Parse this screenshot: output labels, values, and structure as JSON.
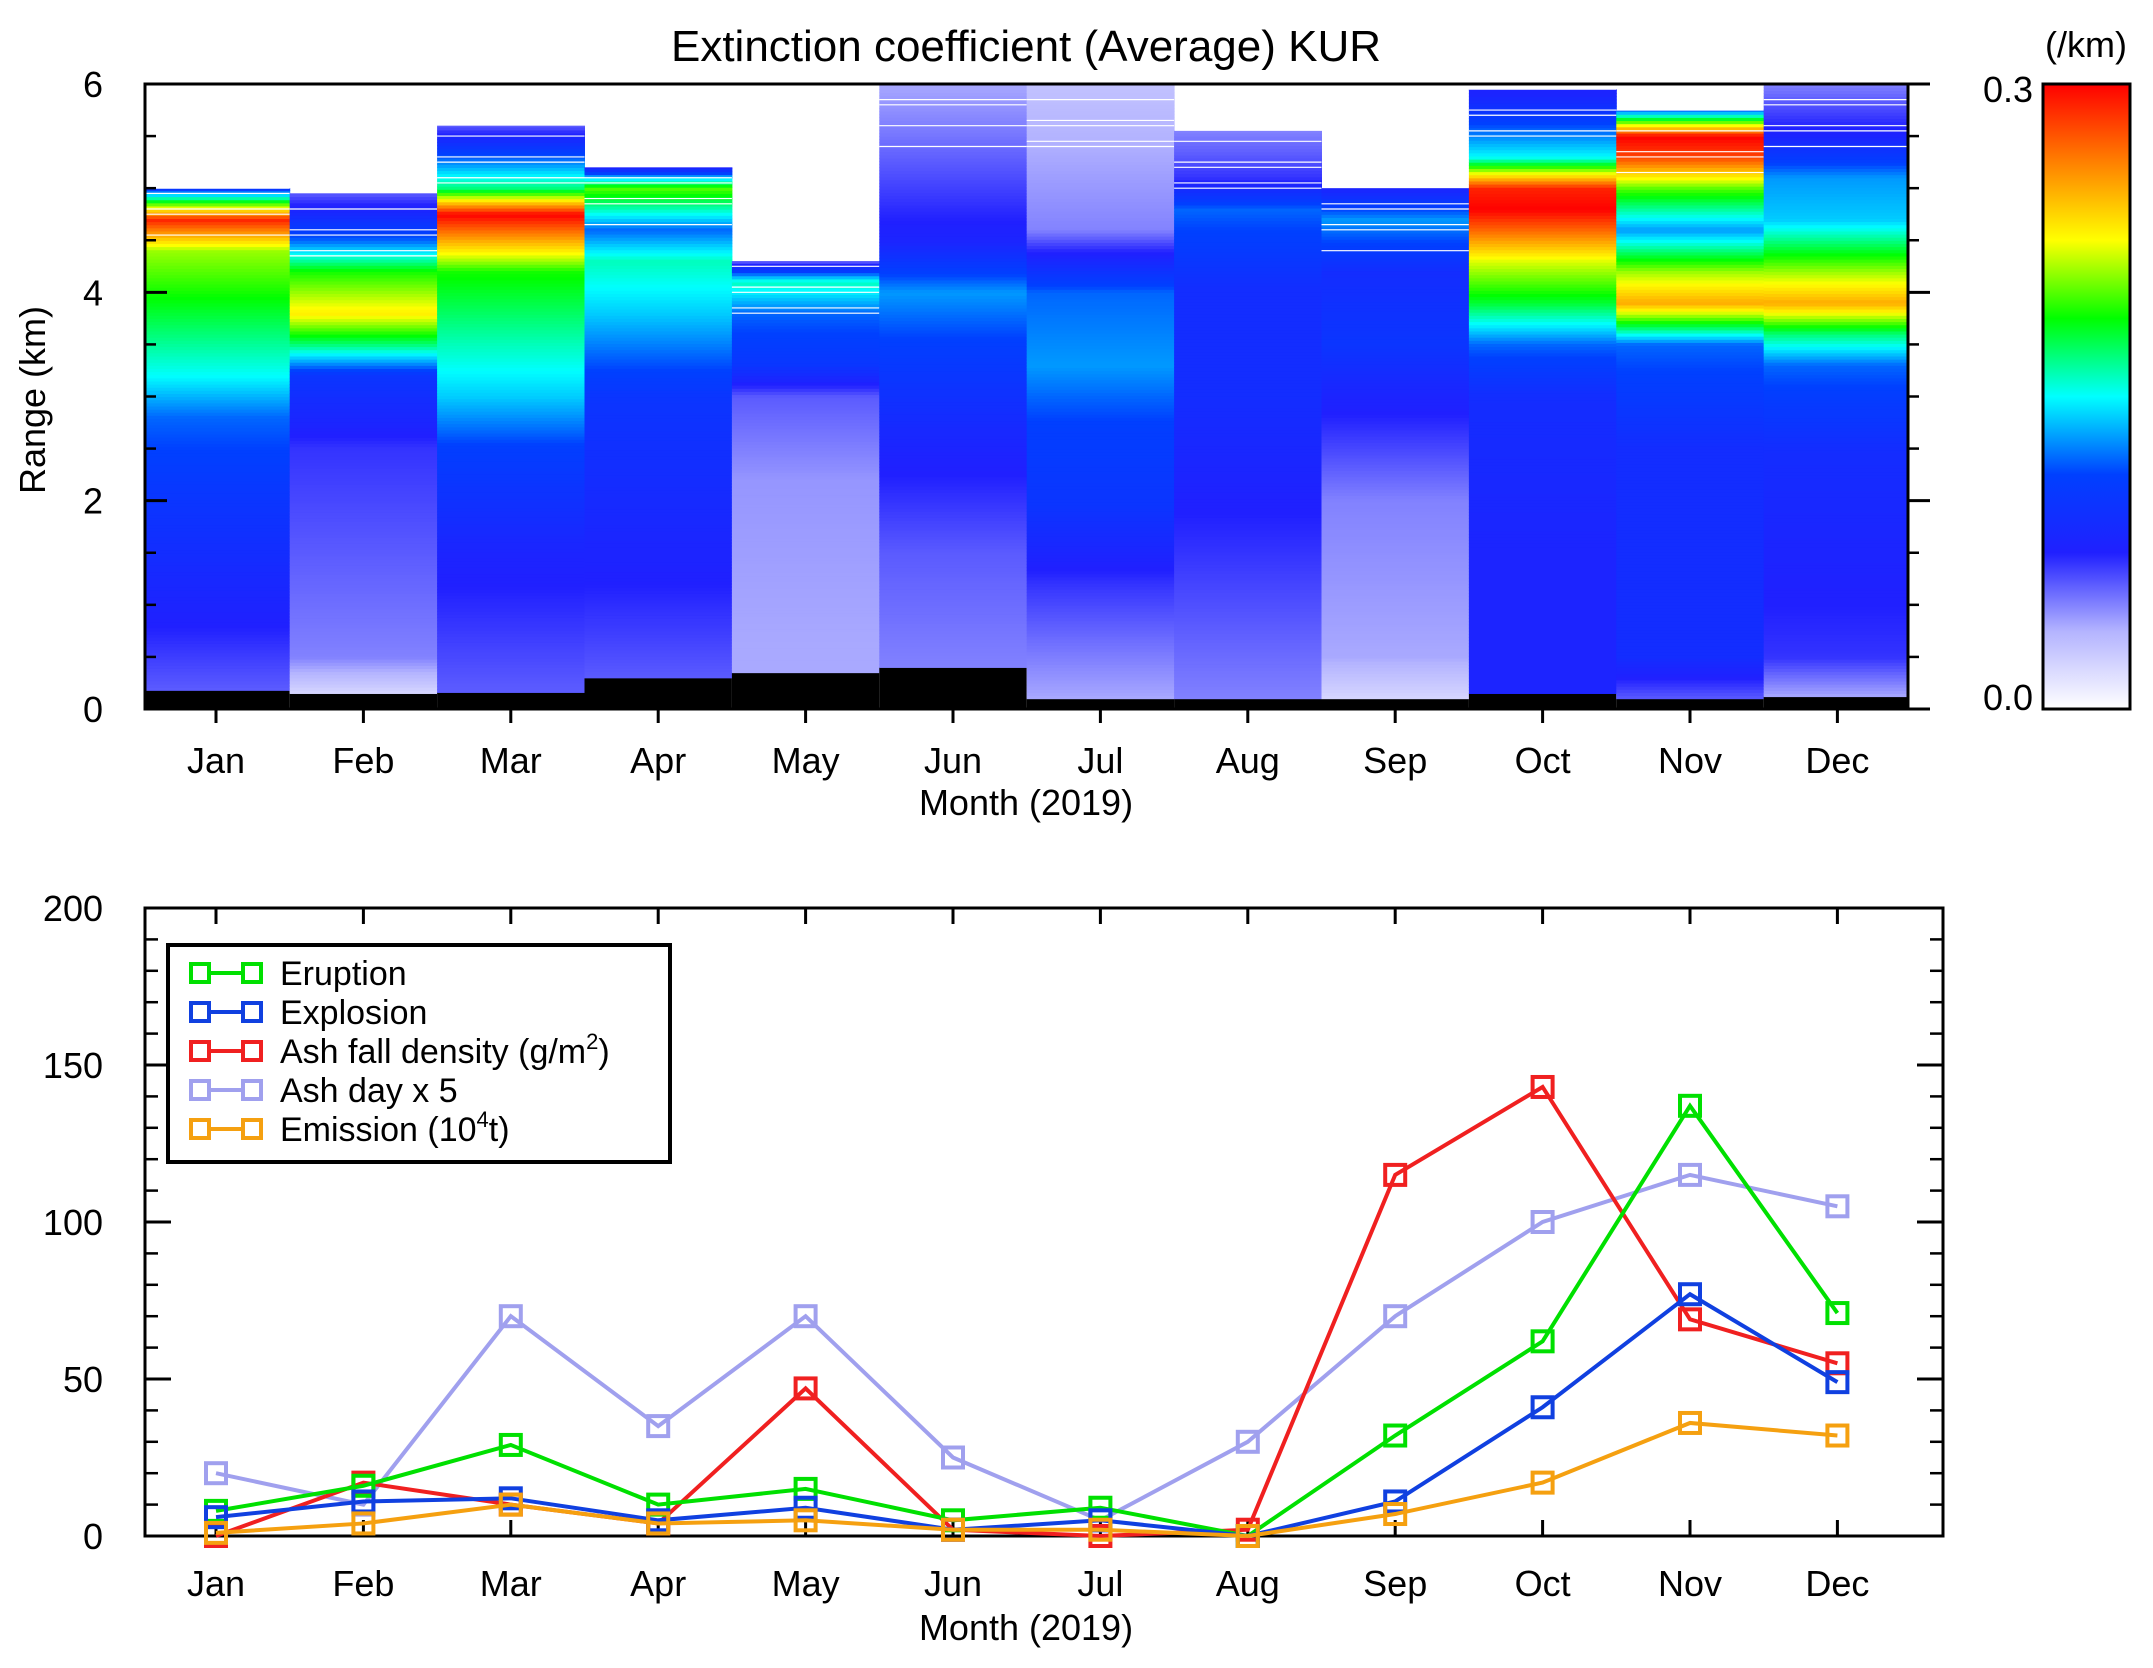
{
  "chart_data": [
    {
      "type": "heatmap",
      "title": "Extinction coefficient (Average) KUR",
      "xlabel": "Month (2019)",
      "ylabel": "Range (km)",
      "categories": [
        "Jan",
        "Feb",
        "Mar",
        "Apr",
        "May",
        "Jun",
        "Jul",
        "Aug",
        "Sep",
        "Oct",
        "Nov",
        "Dec"
      ],
      "yticks": [
        "0",
        "2",
        "4",
        "6"
      ],
      "ylim": [
        0,
        6
      ],
      "colorbar": {
        "label": "(/km)",
        "min_label": "0.0",
        "max_label": "0.3",
        "range": [
          0,
          0.3
        ],
        "colors": [
          "#ffffff",
          "#b3b3ff",
          "#2020ff",
          "#0040ff",
          "#00ffff",
          "#00ff00",
          "#ffff00",
          "#ff8000",
          "#ff0000"
        ]
      },
      "columns": [
        {
          "month": "Jan",
          "base_km": 0.18,
          "top_km": 5.0,
          "profile": [
            [
              0.2,
              0.06
            ],
            [
              1.0,
              0.08
            ],
            [
              2.0,
              0.1
            ],
            [
              2.8,
              0.12
            ],
            [
              3.2,
              0.15
            ],
            [
              3.6,
              0.17
            ],
            [
              4.0,
              0.19
            ],
            [
              4.4,
              0.21
            ],
            [
              4.7,
              0.29
            ],
            [
              4.85,
              0.2
            ],
            [
              5.0,
              0.1
            ]
          ]
        },
        {
          "month": "Feb",
          "base_km": 0.15,
          "top_km": 4.95,
          "profile": [
            [
              0.15,
              0.02
            ],
            [
              0.5,
              0.05
            ],
            [
              2.5,
              0.07
            ],
            [
              3.2,
              0.1
            ],
            [
              3.5,
              0.17
            ],
            [
              3.8,
              0.23
            ],
            [
              4.2,
              0.19
            ],
            [
              4.5,
              0.12
            ],
            [
              4.95,
              0.06
            ]
          ]
        },
        {
          "month": "Mar",
          "base_km": 0.16,
          "top_km": 5.6,
          "profile": [
            [
              0.2,
              0.06
            ],
            [
              1.5,
              0.08
            ],
            [
              2.5,
              0.11
            ],
            [
              3.0,
              0.14
            ],
            [
              3.5,
              0.16
            ],
            [
              4.2,
              0.19
            ],
            [
              4.5,
              0.25
            ],
            [
              4.75,
              0.3
            ],
            [
              5.0,
              0.17
            ],
            [
              5.4,
              0.1
            ],
            [
              5.6,
              0.06
            ]
          ]
        },
        {
          "month": "Apr",
          "base_km": 0.3,
          "top_km": 5.2,
          "profile": [
            [
              0.3,
              0.06
            ],
            [
              1.5,
              0.08
            ],
            [
              3.0,
              0.1
            ],
            [
              3.8,
              0.14
            ],
            [
              4.3,
              0.16
            ],
            [
              4.6,
              0.12
            ],
            [
              5.0,
              0.2
            ],
            [
              5.2,
              0.08
            ]
          ]
        },
        {
          "month": "May",
          "base_km": 0.35,
          "top_km": 4.3,
          "profile": [
            [
              0.35,
              0.04
            ],
            [
              0.6,
              0.04
            ],
            [
              2.2,
              0.045
            ],
            [
              3.0,
              0.06
            ],
            [
              3.3,
              0.1
            ],
            [
              3.8,
              0.12
            ],
            [
              4.1,
              0.16
            ],
            [
              4.3,
              0.06
            ]
          ]
        },
        {
          "month": "Jun",
          "base_km": 0.4,
          "top_km": 6.0,
          "profile": [
            [
              0.4,
              0.05
            ],
            [
              1.5,
              0.06
            ],
            [
              2.5,
              0.08
            ],
            [
              3.5,
              0.11
            ],
            [
              4.0,
              0.13
            ],
            [
              4.5,
              0.08
            ],
            [
              6.0,
              0.04
            ]
          ]
        },
        {
          "month": "Jul",
          "base_km": 0.1,
          "top_km": 6.0,
          "profile": [
            [
              0.1,
              0.04
            ],
            [
              1.2,
              0.07
            ],
            [
              2.0,
              0.1
            ],
            [
              2.7,
              0.11
            ],
            [
              3.3,
              0.13
            ],
            [
              4.0,
              0.12
            ],
            [
              4.6,
              0.05
            ],
            [
              6.0,
              0.03
            ]
          ]
        },
        {
          "month": "Aug",
          "base_km": 0.1,
          "top_km": 5.55,
          "profile": [
            [
              0.1,
              0.05
            ],
            [
              1.5,
              0.07
            ],
            [
              3.0,
              0.09
            ],
            [
              4.0,
              0.09
            ],
            [
              4.8,
              0.12
            ],
            [
              5.1,
              0.07
            ],
            [
              5.55,
              0.05
            ]
          ]
        },
        {
          "month": "Sep",
          "base_km": 0.1,
          "top_km": 5.0,
          "profile": [
            [
              0.1,
              0.02
            ],
            [
              0.5,
              0.04
            ],
            [
              2.0,
              0.05
            ],
            [
              3.0,
              0.08
            ],
            [
              3.5,
              0.1
            ],
            [
              4.2,
              0.09
            ],
            [
              4.7,
              0.13
            ],
            [
              5.0,
              0.08
            ]
          ]
        },
        {
          "month": "Oct",
          "base_km": 0.15,
          "top_km": 5.95,
          "profile": [
            [
              0.15,
              0.08
            ],
            [
              1.5,
              0.08
            ],
            [
              3.0,
              0.09
            ],
            [
              3.5,
              0.12
            ],
            [
              3.9,
              0.18
            ],
            [
              4.3,
              0.22
            ],
            [
              4.6,
              0.27
            ],
            [
              4.8,
              0.3
            ],
            [
              5.0,
              0.29
            ],
            [
              5.3,
              0.15
            ],
            [
              5.9,
              0.08
            ]
          ]
        },
        {
          "month": "Nov",
          "base_km": 0.1,
          "top_km": 5.75,
          "profile": [
            [
              0.1,
              0.06
            ],
            [
              0.5,
              0.09
            ],
            [
              1.5,
              0.09
            ],
            [
              2.5,
              0.09
            ],
            [
              3.5,
              0.12
            ],
            [
              3.9,
              0.25
            ],
            [
              4.2,
              0.21
            ],
            [
              4.6,
              0.13
            ],
            [
              5.0,
              0.2
            ],
            [
              5.3,
              0.28
            ],
            [
              5.5,
              0.3
            ],
            [
              5.75,
              0.12
            ]
          ]
        },
        {
          "month": "Dec",
          "base_km": 0.12,
          "top_km": 6.0,
          "profile": [
            [
              0.12,
              0.04
            ],
            [
              0.5,
              0.07
            ],
            [
              2.5,
              0.09
            ],
            [
              3.3,
              0.12
            ],
            [
              3.6,
              0.17
            ],
            [
              3.9,
              0.25
            ],
            [
              4.2,
              0.21
            ],
            [
              4.7,
              0.14
            ],
            [
              5.1,
              0.13
            ],
            [
              5.5,
              0.08
            ],
            [
              6.0,
              0.05
            ]
          ]
        }
      ]
    },
    {
      "type": "line",
      "xlabel": "Month (2019)",
      "ylabel": "",
      "categories": [
        "Jan",
        "Feb",
        "Mar",
        "Apr",
        "May",
        "Jun",
        "Jul",
        "Aug",
        "Sep",
        "Oct",
        "Nov",
        "Dec"
      ],
      "yticks": [
        "0",
        "50",
        "100",
        "150",
        "200"
      ],
      "ylim": [
        0,
        200
      ],
      "legend_placement": "top-left",
      "series": [
        {
          "name": "Ash day x 5",
          "color": "#a0a0ee",
          "values": [
            20,
            10,
            70,
            35,
            70,
            25,
            5,
            30,
            70,
            100,
            115,
            105
          ]
        },
        {
          "name": "Ash fall density (g/m",
          "name_sup": "2",
          "name_tail": ")",
          "color": "#f02020",
          "values": [
            0,
            17,
            10,
            4,
            47,
            2,
            0,
            2,
            115,
            143,
            69,
            55
          ]
        },
        {
          "name": "Eruption",
          "color": "#00e000",
          "values": [
            8,
            16,
            29,
            10,
            15,
            5,
            9,
            0,
            32,
            62,
            137,
            71
          ]
        },
        {
          "name": "Explosion",
          "color": "#1040e0",
          "values": [
            6,
            11,
            12,
            5,
            9,
            2,
            5,
            0,
            11,
            41,
            77,
            49
          ]
        },
        {
          "name": "Emission (10",
          "name_sup": "4",
          "name_tail": "t)",
          "color": "#f5a010",
          "values": [
            1,
            4,
            10,
            4,
            5,
            2,
            2,
            0,
            7,
            17,
            36,
            32
          ]
        }
      ],
      "legend_order": [
        "Eruption",
        "Explosion",
        "Ash fall density (g/m",
        "Ash day x 5",
        "Emission (10"
      ]
    }
  ]
}
